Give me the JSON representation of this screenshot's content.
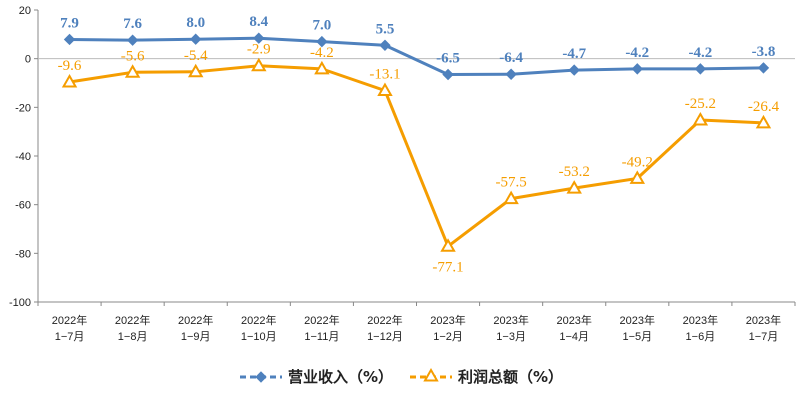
{
  "chart_data": {
    "type": "line",
    "categories": [
      [
        "2022年",
        "1−7月"
      ],
      [
        "2022年",
        "1−8月"
      ],
      [
        "2022年",
        "1−9月"
      ],
      [
        "2022年",
        "1−10月"
      ],
      [
        "2022年",
        "1−11月"
      ],
      [
        "2022年",
        "1−12月"
      ],
      [
        "2023年",
        "1−2月"
      ],
      [
        "2023年",
        "1−3月"
      ],
      [
        "2023年",
        "1−4月"
      ],
      [
        "2023年",
        "1−5月"
      ],
      [
        "2023年",
        "1−6月"
      ],
      [
        "2023年",
        "1−7月"
      ]
    ],
    "ylim": [
      -100,
      20
    ],
    "yticks": [
      20,
      0,
      -20,
      -40,
      -60,
      -80,
      -100
    ],
    "grid": false,
    "legend_position": "bottom",
    "series": [
      {
        "name": "营业收入（%）",
        "values": [
          7.9,
          7.6,
          8.0,
          8.4,
          7.0,
          5.5,
          -6.5,
          -6.4,
          -4.7,
          -4.2,
          -4.2,
          -3.8
        ],
        "labels": [
          "7.9",
          "7.6",
          "8.0",
          "8.4",
          "7.0",
          "5.5",
          "-6.5",
          "-6.4",
          "-4.7",
          "-4.2",
          "-4.2",
          "-3.8"
        ],
        "color": "#4f81bd",
        "marker": "diamond"
      },
      {
        "name": "利润总额（%）",
        "values": [
          -9.6,
          -5.6,
          -5.4,
          -2.9,
          -4.2,
          -13.1,
          -77.1,
          -57.5,
          -53.2,
          -49.2,
          -25.2,
          -26.4
        ],
        "labels": [
          "-9.6",
          "-5.6",
          "-5.4",
          "-2.9",
          "-4.2",
          "-13.1",
          "-77.1",
          "-57.5",
          "-53.2",
          "-49.2",
          "-25.2",
          "-26.4"
        ],
        "color": "#f59d00",
        "marker": "triangle"
      }
    ]
  }
}
